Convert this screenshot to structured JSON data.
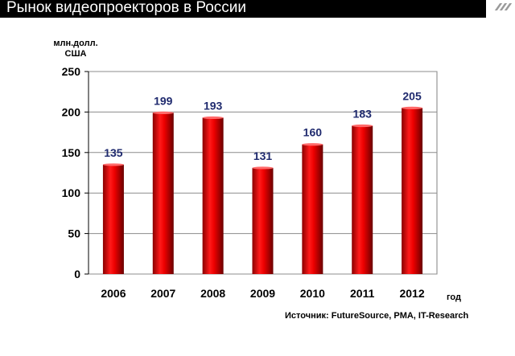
{
  "header": {
    "title": "Рынок видеопроекторов в России"
  },
  "source_note": "Источник: FutureSource, PMA, IT-Research",
  "colors": {
    "bar": "#e00000",
    "bar_dark": "#7a0000",
    "label": "#1f2a6e",
    "title_bg": "#000000"
  },
  "chart_data": {
    "type": "bar",
    "title": "Рынок видеопроекторов в России",
    "ylabel": "млн.долл. США",
    "xlabel": "год",
    "categories": [
      "2006",
      "2007",
      "2008",
      "2009",
      "2010",
      "2011",
      "2012"
    ],
    "values": [
      135,
      199,
      193,
      131,
      160,
      183,
      205
    ],
    "value_labels": [
      "135",
      "199",
      "193",
      "131",
      "160",
      "183",
      "205"
    ],
    "ylim": [
      0,
      250
    ],
    "yticks": [
      0,
      50,
      100,
      150,
      200,
      250
    ],
    "ytick_labels": [
      "0",
      "50",
      "100",
      "150",
      "200",
      "250"
    ],
    "grid": true,
    "legend": "none"
  }
}
